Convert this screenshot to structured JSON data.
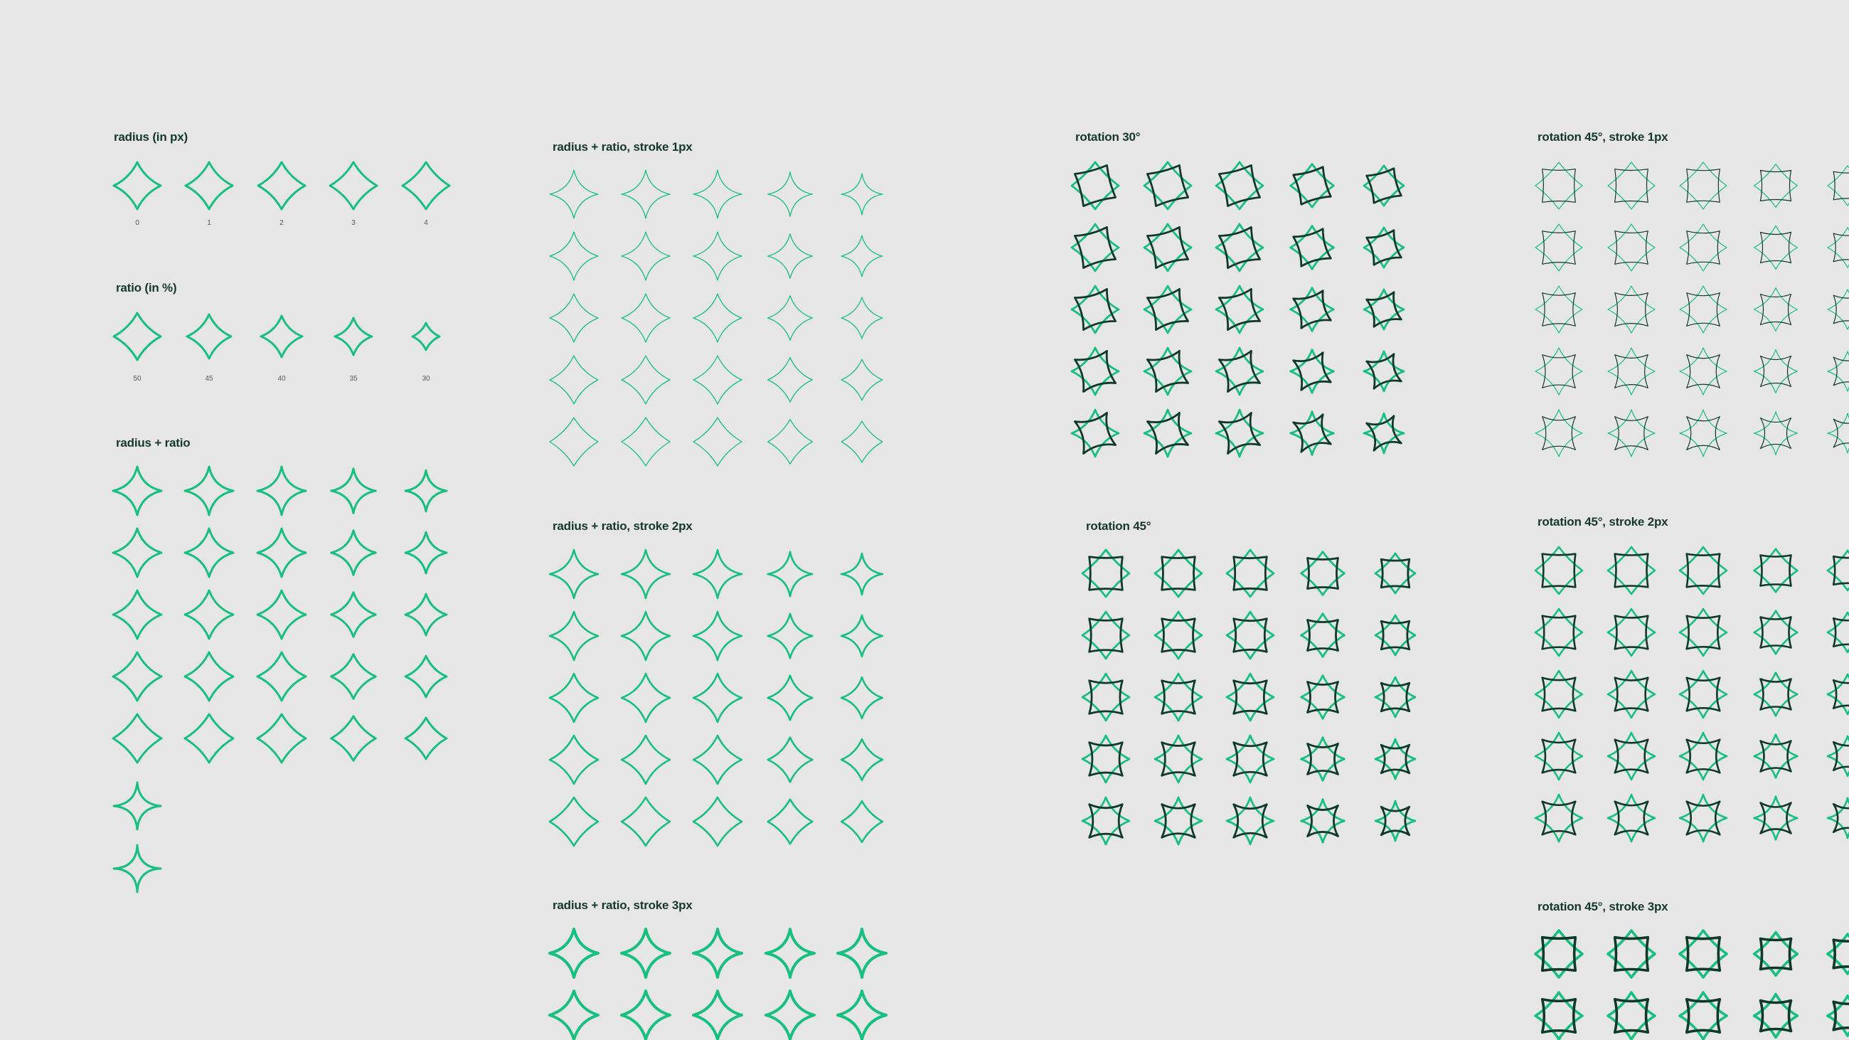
{
  "colors": {
    "background": "#e6e6e6",
    "accent": "#17c07e",
    "dark": "#0f3a2a",
    "title": "#16382c",
    "caption": "#5a5a5a"
  },
  "icons": {
    "shape": "four-point-star-icon"
  },
  "sections": {
    "radius": {
      "title": "radius (in px)",
      "captions": [
        "0",
        "1",
        "2",
        "3",
        "4"
      ]
    },
    "ratio": {
      "title": "ratio (in %)",
      "captions": [
        "50",
        "45",
        "40",
        "35",
        "30"
      ]
    },
    "radius_ratio": {
      "title": "radius + ratio"
    },
    "stroke1": {
      "title": "radius + ratio, stroke 1px"
    },
    "stroke2": {
      "title": "radius + ratio, stroke 2px"
    },
    "stroke3": {
      "title": "radius + ratio, stroke 3px"
    },
    "rot30": {
      "title": "rotation 30°"
    },
    "rot45": {
      "title": "rotation 45°"
    },
    "rot45_s1": {
      "title": "rotation 45°, stroke 1px"
    },
    "rot45_s2": {
      "title": "rotation 45°, stroke 2px"
    },
    "rot45_s3": {
      "title": "rotation 45°, stroke 3px"
    }
  }
}
